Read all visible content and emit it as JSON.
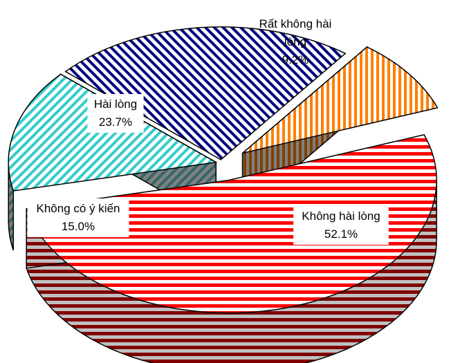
{
  "chart_data": {
    "type": "pie",
    "style": "3d-exploded",
    "categories": [
      "Không hài lòng",
      "Không có ý kiến",
      "Hài lòng",
      "Rất không hài lòng"
    ],
    "values": [
      52.1,
      15.0,
      23.7,
      9.2
    ],
    "value_labels": [
      "52.1%",
      "15.0%",
      "23.7%",
      "9.2%"
    ],
    "colors": [
      "#ff0000",
      "#33cccc",
      "#000080",
      "#ff7f00"
    ],
    "side_colors": [
      "#800000",
      "#336666",
      "#404040",
      "#804000"
    ],
    "fill_patterns": [
      "horizontal-stripes",
      "diagonal-stripes",
      "diagonal-stripes",
      "vertical-stripes"
    ],
    "legend": "none",
    "labels": [
      {
        "lines": [
          "Không hài lòng",
          "52.1%"
        ]
      },
      {
        "lines": [
          "Không có ý kiến",
          "15.0%"
        ]
      },
      {
        "lines": [
          "Hài lòng",
          "23.7%"
        ]
      },
      {
        "lines": [
          "Rất không hài",
          "lòng",
          "9.2%"
        ]
      }
    ]
  }
}
